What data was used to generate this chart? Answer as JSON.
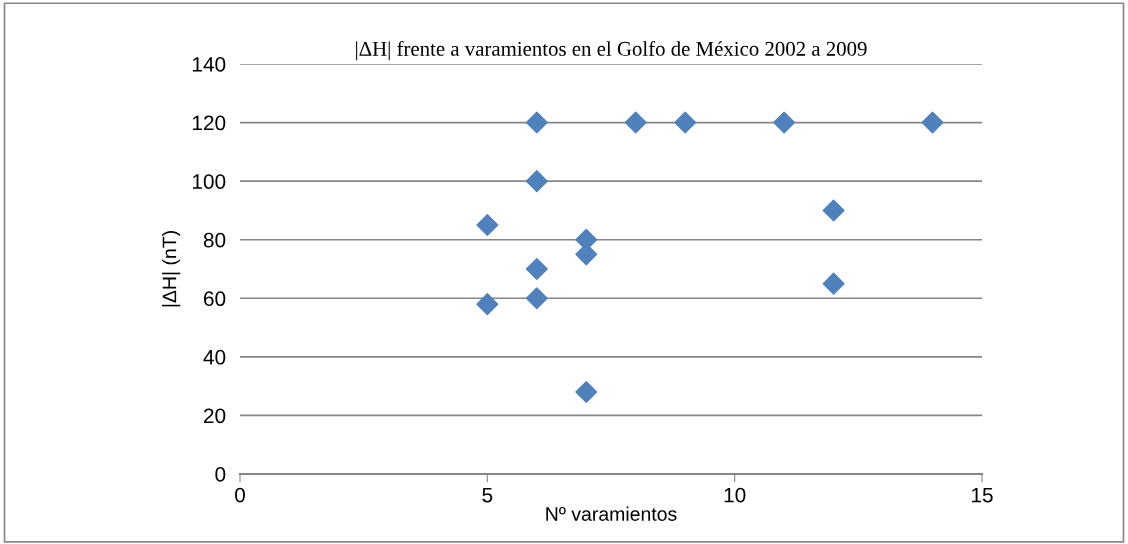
{
  "chart_data": {
    "type": "scatter",
    "title": "|ΔH| frente a varamientos en el Golfo de México 2002 a 2009",
    "xlabel": "Nº varamientos",
    "ylabel": "|ΔH| (nT)",
    "x": [
      5,
      5,
      6,
      6,
      6,
      6,
      7,
      7,
      7,
      8,
      9,
      11,
      14,
      12,
      12
    ],
    "series": [
      {
        "color": "#4f81bd",
        "values": [
          85,
          58,
          120,
          100,
          70,
          60,
          80,
          75,
          28,
          120,
          120,
          120,
          120,
          90,
          65
        ]
      }
    ],
    "xlim": [
      0,
      15
    ],
    "xticks": [
      0,
      5,
      10,
      15
    ],
    "ylim": [
      0,
      140
    ],
    "yticks": [
      0,
      20,
      40,
      60,
      80,
      100,
      120,
      140
    ],
    "grid": "y",
    "marker": "diamond",
    "legend": false
  }
}
